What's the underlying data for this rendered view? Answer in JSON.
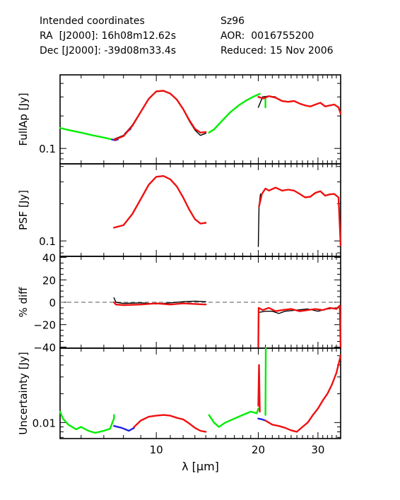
{
  "header": {
    "left": [
      "Intended coordinates",
      "RA  [J2000]: 16h08m12.62s",
      "Dec [J2000]: -39d08m33.4s"
    ],
    "right": [
      "Sz96",
      "AOR:  0016755200",
      "Reduced: 15 Nov 2006"
    ]
  },
  "colors": {
    "green": "#00ee00",
    "red": "#ee1111",
    "blue": "#2222dd",
    "black": "#000000",
    "dashed": "#777777"
  },
  "chart_data": [
    {
      "type": "line",
      "ylabel": "FullAp [Jy]",
      "yscale": "log",
      "ylim": [
        0.072,
        0.48
      ],
      "yticks": [
        {
          "value": 0.1,
          "label": "0.1"
        }
      ],
      "series": [
        {
          "color": "green",
          "points": [
            [
              5.2,
              0.155
            ],
            [
              5.5,
              0.148
            ],
            [
              6.0,
              0.14
            ],
            [
              6.5,
              0.132
            ],
            [
              7.0,
              0.126
            ],
            [
              7.4,
              0.121
            ]
          ]
        },
        {
          "color": "blue",
          "points": [
            [
              7.4,
              0.121
            ],
            [
              7.55,
              0.119
            ],
            [
              7.7,
              0.121
            ]
          ]
        },
        {
          "color": "blue",
          "points": [
            [
              8.1,
              0.138
            ],
            [
              8.25,
              0.145
            ],
            [
              8.4,
              0.152
            ]
          ]
        },
        {
          "color": "black",
          "points": [
            [
              7.5,
              0.122
            ],
            [
              8.0,
              0.132
            ],
            [
              8.5,
              0.165
            ],
            [
              9.0,
              0.22
            ],
            [
              9.5,
              0.29
            ],
            [
              10.0,
              0.335
            ],
            [
              10.5,
              0.34
            ],
            [
              11.0,
              0.32
            ],
            [
              11.5,
              0.28
            ],
            [
              12.0,
              0.23
            ],
            [
              12.5,
              0.18
            ],
            [
              13.0,
              0.148
            ],
            [
              13.5,
              0.132
            ],
            [
              14.0,
              0.138
            ]
          ]
        },
        {
          "color": "red",
          "points": [
            [
              7.5,
              0.12
            ],
            [
              8.0,
              0.13
            ],
            [
              8.5,
              0.162
            ],
            [
              9.0,
              0.218
            ],
            [
              9.5,
              0.288
            ],
            [
              10.0,
              0.338
            ],
            [
              10.5,
              0.342
            ],
            [
              11.0,
              0.322
            ],
            [
              11.5,
              0.283
            ],
            [
              12.0,
              0.232
            ],
            [
              12.5,
              0.184
            ],
            [
              13.0,
              0.152
            ],
            [
              13.5,
              0.14
            ],
            [
              14.0,
              0.142
            ]
          ]
        },
        {
          "color": "green",
          "points": [
            [
              14.3,
              0.14
            ],
            [
              14.8,
              0.15
            ],
            [
              15.5,
              0.175
            ],
            [
              16.5,
              0.215
            ],
            [
              17.5,
              0.25
            ],
            [
              18.5,
              0.28
            ],
            [
              19.5,
              0.305
            ],
            [
              20.2,
              0.32
            ]
          ]
        },
        {
          "color": "green",
          "points": [
            [
              21.0,
              0.24
            ],
            [
              21.0,
              0.3
            ]
          ]
        },
        {
          "color": "black",
          "points": [
            [
              20.0,
              0.24
            ],
            [
              20.6,
              0.3
            ],
            [
              21.5,
              0.305
            ],
            [
              22.5,
              0.3
            ]
          ]
        },
        {
          "color": "red",
          "points": [
            [
              20.0,
              0.3
            ],
            [
              20.7,
              0.29
            ],
            [
              21.5,
              0.305
            ],
            [
              22.5,
              0.295
            ],
            [
              23.5,
              0.275
            ],
            [
              24.5,
              0.27
            ],
            [
              25.5,
              0.275
            ],
            [
              26.5,
              0.26
            ],
            [
              27.5,
              0.25
            ],
            [
              28.5,
              0.245
            ],
            [
              29.5,
              0.255
            ],
            [
              30.5,
              0.265
            ],
            [
              31.5,
              0.245
            ],
            [
              32.5,
              0.25
            ],
            [
              33.5,
              0.255
            ],
            [
              34.5,
              0.24
            ],
            [
              35.0,
              0.21
            ]
          ]
        }
      ]
    },
    {
      "type": "line",
      "ylabel": "PSF [Jy]",
      "yscale": "log",
      "ylim": [
        0.075,
        0.42
      ],
      "yticks": [
        {
          "value": 0.1,
          "label": "0.1"
        }
      ],
      "series": [
        {
          "color": "red",
          "points": [
            [
              7.5,
              0.128
            ],
            [
              8.0,
              0.134
            ],
            [
              8.5,
              0.165
            ],
            [
              9.0,
              0.218
            ],
            [
              9.5,
              0.285
            ],
            [
              10.0,
              0.33
            ],
            [
              10.5,
              0.335
            ],
            [
              11.0,
              0.315
            ],
            [
              11.5,
              0.275
            ],
            [
              12.0,
              0.225
            ],
            [
              12.5,
              0.18
            ],
            [
              13.0,
              0.15
            ],
            [
              13.5,
              0.138
            ],
            [
              14.0,
              0.14
            ]
          ]
        },
        {
          "color": "black",
          "points": [
            [
              20.0,
              0.09
            ],
            [
              20.1,
              0.19
            ],
            [
              20.3,
              0.24
            ]
          ]
        },
        {
          "color": "red",
          "points": [
            [
              20.1,
              0.19
            ],
            [
              20.5,
              0.24
            ],
            [
              21.0,
              0.265
            ],
            [
              21.5,
              0.255
            ],
            [
              22.5,
              0.27
            ],
            [
              23.5,
              0.255
            ],
            [
              24.5,
              0.26
            ],
            [
              25.5,
              0.255
            ],
            [
              26.5,
              0.24
            ],
            [
              27.5,
              0.225
            ],
            [
              28.5,
              0.228
            ],
            [
              29.5,
              0.245
            ],
            [
              30.5,
              0.252
            ],
            [
              31.5,
              0.232
            ],
            [
              32.5,
              0.238
            ],
            [
              33.5,
              0.24
            ],
            [
              34.5,
              0.225
            ],
            [
              35.0,
              0.092
            ]
          ]
        }
      ]
    },
    {
      "type": "line",
      "ylabel": "% diff",
      "yscale": "linear",
      "ylim": [
        -41,
        41
      ],
      "yticks": [
        {
          "value": 40,
          "label": "40"
        },
        {
          "value": 20,
          "label": "20"
        },
        {
          "value": 0,
          "label": "0"
        },
        {
          "value": -20,
          "label": "−20"
        },
        {
          "value": -40,
          "label": "−40"
        }
      ],
      "zero_line": true,
      "series": [
        {
          "color": "black",
          "points": [
            [
              7.5,
              4.0
            ],
            [
              7.6,
              0.0
            ],
            [
              8.0,
              -1.0
            ],
            [
              9.0,
              -0.5
            ],
            [
              10.0,
              -1.5
            ],
            [
              11.0,
              -0.5
            ],
            [
              12.0,
              0.5
            ],
            [
              13.0,
              1.0
            ],
            [
              14.0,
              0.5
            ]
          ]
        },
        {
          "color": "red",
          "points": [
            [
              7.5,
              0.0
            ],
            [
              7.6,
              -2.0
            ],
            [
              8.0,
              -2.5
            ],
            [
              9.0,
              -2.0
            ],
            [
              10.0,
              -1.0
            ],
            [
              11.0,
              -2.0
            ],
            [
              12.0,
              -1.0
            ],
            [
              13.0,
              -1.5
            ],
            [
              14.0,
              -2.0
            ]
          ]
        },
        {
          "color": "black",
          "points": [
            [
              20.1,
              -9.0
            ],
            [
              21.0,
              -8.0
            ],
            [
              22.0,
              -8.0
            ],
            [
              23.0,
              -10.0
            ],
            [
              24.0,
              -8.0
            ],
            [
              26.0,
              -7.0
            ],
            [
              28.0,
              -6.0
            ],
            [
              30.0,
              -8.0
            ],
            [
              32.0,
              -6.0
            ],
            [
              34.0,
              -5.0
            ]
          ]
        },
        {
          "color": "red",
          "points": [
            [
              20.0,
              -40.0
            ],
            [
              20.05,
              -5.0
            ],
            [
              20.6,
              -7.0
            ],
            [
              21.5,
              -5.0
            ],
            [
              22.5,
              -8.0
            ],
            [
              23.5,
              -7.0
            ],
            [
              25.0,
              -6.0
            ],
            [
              26.5,
              -8.0
            ],
            [
              28.0,
              -7.0
            ],
            [
              29.5,
              -6.0
            ],
            [
              31.0,
              -7.0
            ],
            [
              32.5,
              -5.0
            ],
            [
              34.0,
              -6.0
            ],
            [
              34.8,
              -3.0
            ],
            [
              35.0,
              -40.0
            ]
          ]
        }
      ]
    },
    {
      "type": "line",
      "ylabel": "Uncertainty [Jy]",
      "yscale": "log",
      "ylim": [
        0.0068,
        0.06
      ],
      "yticks": [
        {
          "value": 0.01,
          "label": "0.01"
        }
      ],
      "series": [
        {
          "color": "green",
          "points": [
            [
              5.2,
              0.013
            ],
            [
              5.3,
              0.011
            ],
            [
              5.5,
              0.0095
            ],
            [
              5.8,
              0.0085
            ],
            [
              6.0,
              0.009
            ],
            [
              6.3,
              0.0082
            ],
            [
              6.6,
              0.0078
            ],
            [
              7.0,
              0.0082
            ],
            [
              7.3,
              0.0086
            ],
            [
              7.5,
              0.011
            ],
            [
              7.5,
              0.012
            ]
          ]
        },
        {
          "color": "blue",
          "points": [
            [
              7.5,
              0.0092
            ],
            [
              7.9,
              0.0088
            ],
            [
              8.3,
              0.0082
            ],
            [
              8.6,
              0.0088
            ]
          ]
        },
        {
          "color": "red",
          "points": [
            [
              8.6,
              0.009
            ],
            [
              9.0,
              0.0105
            ],
            [
              9.5,
              0.0115
            ],
            [
              10.0,
              0.0118
            ],
            [
              10.5,
              0.012
            ],
            [
              11.0,
              0.0118
            ],
            [
              11.5,
              0.0112
            ],
            [
              12.0,
              0.0108
            ],
            [
              12.5,
              0.0098
            ],
            [
              13.0,
              0.0088
            ],
            [
              13.5,
              0.0082
            ],
            [
              14.0,
              0.008
            ]
          ]
        },
        {
          "color": "green",
          "points": [
            [
              14.3,
              0.012
            ],
            [
              14.8,
              0.01
            ],
            [
              15.3,
              0.009
            ],
            [
              16.0,
              0.01
            ],
            [
              17.0,
              0.011
            ],
            [
              18.0,
              0.012
            ],
            [
              19.0,
              0.013
            ],
            [
              19.8,
              0.0125
            ],
            [
              20.0,
              0.014
            ]
          ]
        },
        {
          "color": "red",
          "points": [
            [
              20.0,
              0.015
            ],
            [
              20.1,
              0.04
            ],
            [
              20.2,
              0.013
            ]
          ]
        },
        {
          "color": "blue",
          "points": [
            [
              20.0,
              0.011
            ],
            [
              20.5,
              0.0108
            ],
            [
              21.0,
              0.0105
            ]
          ]
        },
        {
          "color": "green",
          "points": [
            [
              21.0,
              0.012
            ],
            [
              21.05,
              0.06
            ]
          ]
        },
        {
          "color": "red",
          "points": [
            [
              21.0,
              0.0105
            ],
            [
              22.0,
              0.0095
            ],
            [
              23.0,
              0.0092
            ],
            [
              24.0,
              0.0088
            ],
            [
              25.0,
              0.0083
            ],
            [
              26.0,
              0.008
            ],
            [
              27.0,
              0.009
            ],
            [
              28.0,
              0.01
            ],
            [
              29.0,
              0.012
            ],
            [
              30.0,
              0.014
            ],
            [
              31.0,
              0.017
            ],
            [
              32.0,
              0.02
            ],
            [
              33.0,
              0.025
            ],
            [
              34.0,
              0.033
            ],
            [
              35.0,
              0.05
            ]
          ]
        }
      ]
    }
  ],
  "x_axis": {
    "label": "λ [μm]",
    "scale": "log",
    "range": [
      5.2,
      35.0
    ],
    "ticks": [
      {
        "value": 10,
        "label": "10"
      },
      {
        "value": 20,
        "label": "20"
      },
      {
        "value": 30,
        "label": "30"
      }
    ]
  }
}
